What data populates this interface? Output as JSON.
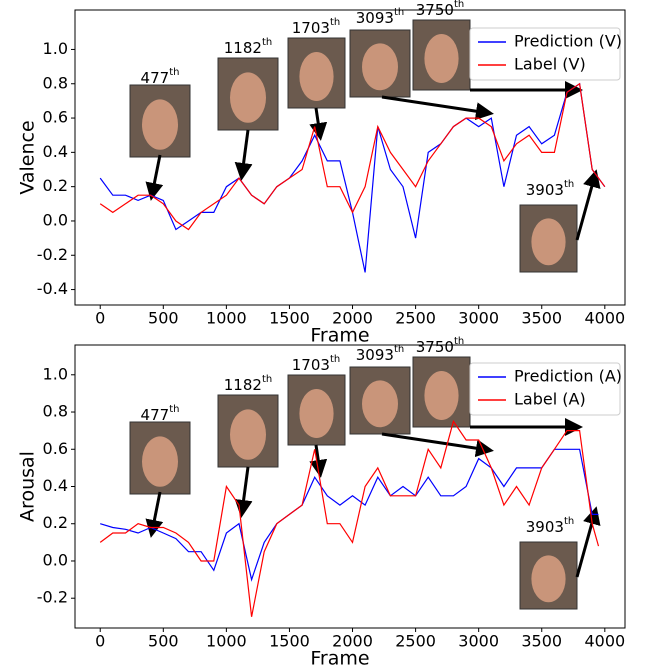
{
  "chart_data": [
    {
      "type": "line",
      "x_label": "Frame",
      "y_label": "Valence",
      "x": [
        0,
        100,
        200,
        300,
        400,
        500,
        600,
        700,
        800,
        900,
        1000,
        1100,
        1200,
        1300,
        1400,
        1500,
        1600,
        1700,
        1800,
        1900,
        2000,
        2100,
        2200,
        2300,
        2400,
        2500,
        2600,
        2700,
        2800,
        2900,
        3000,
        3100,
        3200,
        3300,
        3400,
        3500,
        3600,
        3700,
        3800,
        3900,
        4000
      ],
      "series": [
        {
          "name": "Prediction (V)",
          "color": "#0000ff",
          "values": [
            0.25,
            0.15,
            0.15,
            0.12,
            0.15,
            0.12,
            -0.05,
            0.0,
            0.05,
            0.05,
            0.2,
            0.25,
            0.15,
            0.1,
            0.2,
            0.25,
            0.35,
            0.5,
            0.35,
            0.35,
            0.05,
            -0.3,
            0.55,
            0.3,
            0.2,
            -0.1,
            0.4,
            0.45,
            0.55,
            0.6,
            0.55,
            0.6,
            0.2,
            0.5,
            0.55,
            0.45,
            0.5,
            0.75,
            0.8,
            0.3,
            0.2
          ]
        },
        {
          "name": "Label (V)",
          "color": "#ff0000",
          "values": [
            0.1,
            0.05,
            0.1,
            0.15,
            0.15,
            0.1,
            0.0,
            -0.05,
            0.05,
            0.1,
            0.15,
            0.25,
            0.15,
            0.1,
            0.2,
            0.25,
            0.3,
            0.55,
            0.2,
            0.2,
            0.05,
            0.2,
            0.55,
            0.4,
            0.3,
            0.2,
            0.35,
            0.45,
            0.55,
            0.6,
            0.6,
            0.55,
            0.35,
            0.45,
            0.5,
            0.4,
            0.4,
            0.75,
            0.8,
            0.3,
            0.2
          ]
        }
      ],
      "xlim": [
        -200,
        4160
      ],
      "ylim": [
        -0.49,
        1.23
      ],
      "xticks": [
        0,
        500,
        1000,
        1500,
        2000,
        2500,
        3000,
        3500,
        4000
      ],
      "yticks": [
        -0.4,
        -0.2,
        {
          "value": 0,
          "label": "0.0"
        },
        0.2,
        0.4,
        0.6,
        0.8,
        {
          "value": 1,
          "label": "1.0"
        }
      ],
      "legend": "upper right",
      "annotations": [
        {
          "text": "477",
          "sup": "th"
        },
        {
          "text": "1182",
          "sup": "th"
        },
        {
          "text": "1703",
          "sup": "th"
        },
        {
          "text": "3093",
          "sup": "th"
        },
        {
          "text": "3750",
          "sup": "th"
        },
        {
          "text": "3903",
          "sup": "th"
        }
      ]
    },
    {
      "type": "line",
      "x_label": "Frame",
      "y_label": "Arousal",
      "x": [
        0,
        100,
        200,
        300,
        400,
        500,
        600,
        700,
        800,
        900,
        1000,
        1100,
        1200,
        1300,
        1400,
        1500,
        1600,
        1700,
        1800,
        1900,
        2000,
        2100,
        2200,
        2300,
        2400,
        2500,
        2600,
        2700,
        2800,
        2900,
        3000,
        3100,
        3200,
        3300,
        3400,
        3500,
        3600,
        3700,
        3800,
        3900,
        3950
      ],
      "series": [
        {
          "name": "Prediction (A)",
          "color": "#0000ff",
          "values": [
            0.2,
            0.18,
            0.17,
            0.15,
            0.18,
            0.15,
            0.12,
            0.05,
            0.05,
            -0.05,
            0.15,
            0.2,
            -0.1,
            0.1,
            0.2,
            0.25,
            0.3,
            0.45,
            0.35,
            0.3,
            0.35,
            0.3,
            0.45,
            0.35,
            0.4,
            0.35,
            0.45,
            0.35,
            0.35,
            0.4,
            0.55,
            0.5,
            0.4,
            0.5,
            0.5,
            0.5,
            0.6,
            0.6,
            0.6,
            0.25,
            0.25
          ]
        },
        {
          "name": "Label (A)",
          "color": "#ff0000",
          "values": [
            0.1,
            0.15,
            0.15,
            0.2,
            0.18,
            0.18,
            0.15,
            0.1,
            0.0,
            0.0,
            0.4,
            0.3,
            -0.3,
            0.05,
            0.2,
            0.25,
            0.3,
            0.6,
            0.2,
            0.2,
            0.1,
            0.4,
            0.5,
            0.35,
            0.35,
            0.35,
            0.6,
            0.5,
            0.75,
            0.65,
            0.65,
            0.5,
            0.3,
            0.4,
            0.3,
            0.5,
            0.6,
            0.7,
            0.7,
            0.2,
            0.08
          ]
        }
      ],
      "xlim": [
        -200,
        4160
      ],
      "ylim": [
        -0.36,
        1.16
      ],
      "xticks": [
        0,
        500,
        1000,
        1500,
        2000,
        2500,
        3000,
        3500,
        4000
      ],
      "yticks": [
        -0.2,
        {
          "value": 0,
          "label": "0.0"
        },
        0.2,
        0.4,
        0.6,
        0.8,
        {
          "value": 1,
          "label": "1.0"
        }
      ],
      "legend": "upper right",
      "annotations": [
        {
          "text": "477",
          "sup": "th"
        },
        {
          "text": "1182",
          "sup": "th"
        },
        {
          "text": "1703",
          "sup": "th"
        },
        {
          "text": "3093",
          "sup": "th"
        },
        {
          "text": "3750",
          "sup": "th"
        },
        {
          "text": "3903",
          "sup": "th"
        }
      ]
    }
  ]
}
